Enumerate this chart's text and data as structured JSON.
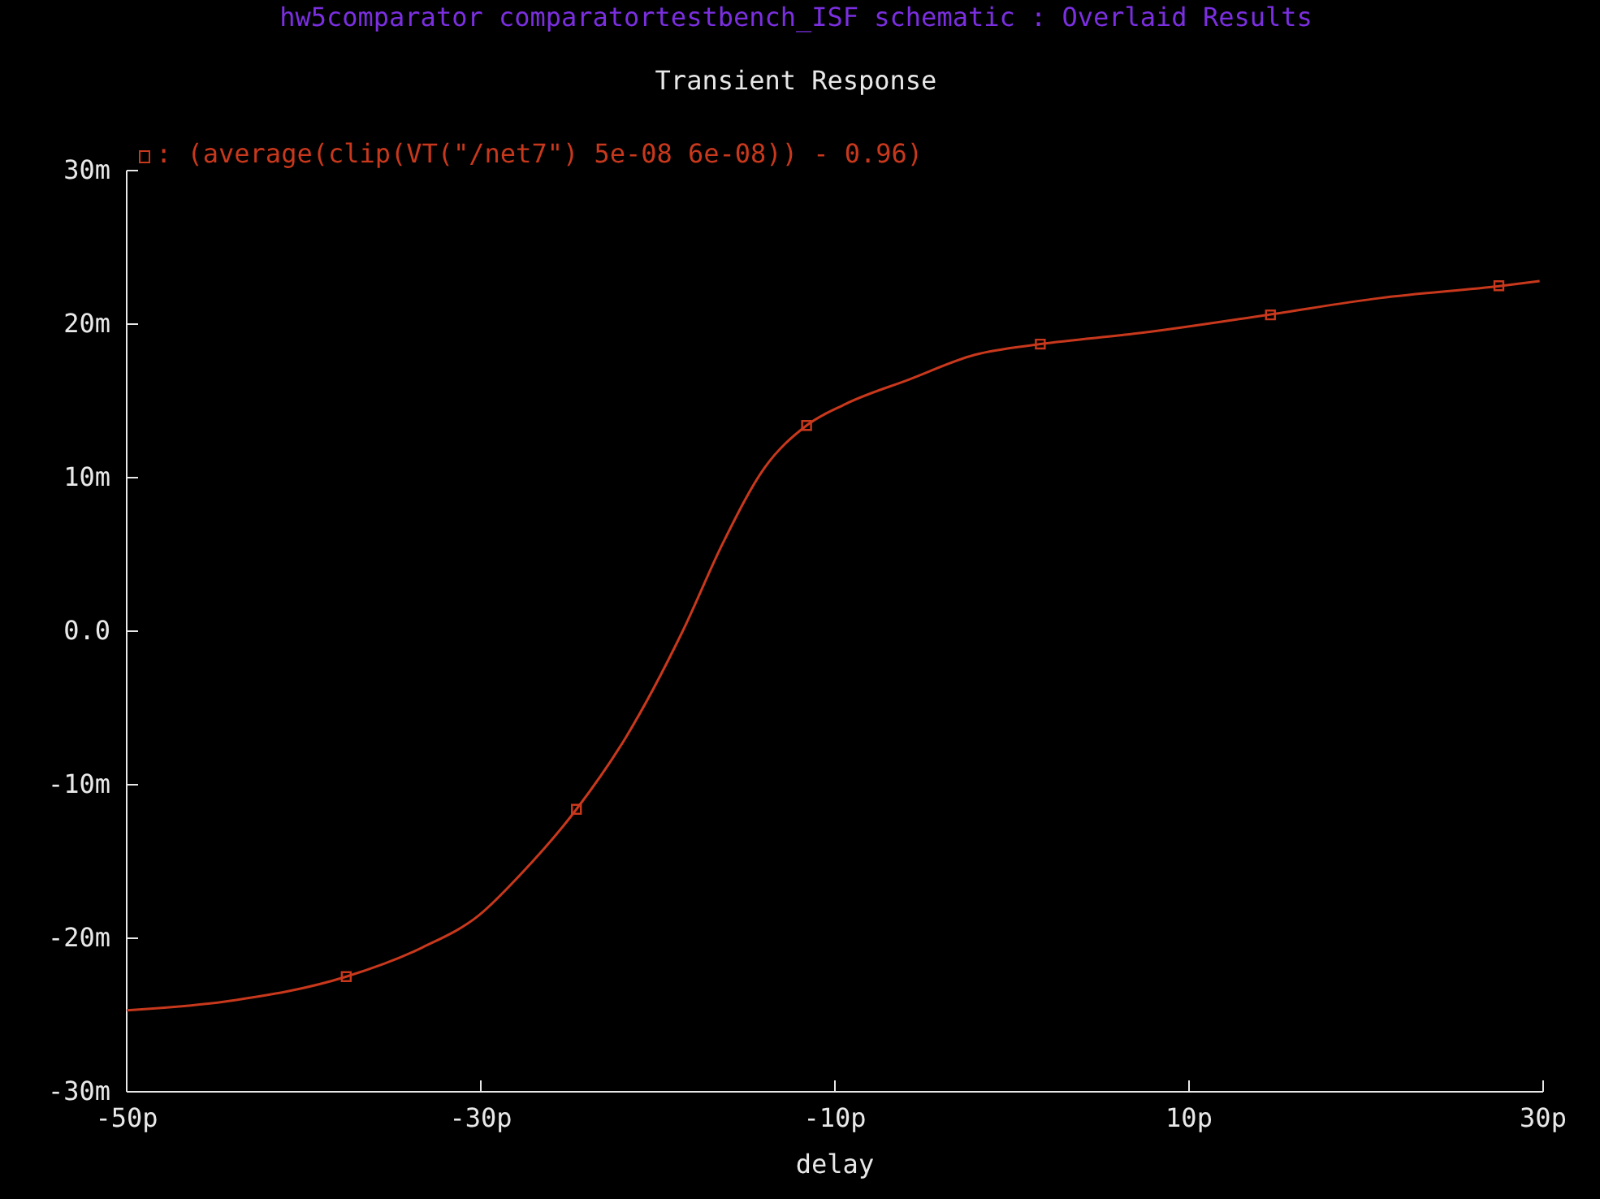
{
  "chart_data": {
    "type": "line",
    "title": "Transient Response",
    "subtitle": "hw5comparator comparatortestbench_ISF schematic : Overlaid Results",
    "xlabel": "delay",
    "xlim": [
      -50,
      30
    ],
    "xticks": [
      {
        "value": -50,
        "label": "-50p"
      },
      {
        "value": -30,
        "label": "-30p"
      },
      {
        "value": -10,
        "label": "-10p"
      },
      {
        "value": 10,
        "label": "10p"
      },
      {
        "value": 30,
        "label": "30p"
      }
    ],
    "ylim": [
      -30,
      30
    ],
    "yticks": [
      {
        "value": -30,
        "label": "-30m"
      },
      {
        "value": -20,
        "label": "-20m"
      },
      {
        "value": -10,
        "label": "-10m"
      },
      {
        "value": 0,
        "label": "0.0"
      },
      {
        "value": 10,
        "label": "10m"
      },
      {
        "value": 20,
        "label": "20m"
      },
      {
        "value": 30,
        "label": "30m"
      }
    ],
    "grid": false,
    "series": [
      {
        "name": ": (average(clip(VT(\"/net7\") 5e-08 6e-08)) - 0.96)",
        "color": "#c8381c",
        "x": [
          -50,
          -44.3,
          -37.6,
          -33.3,
          -30.1,
          -27.8,
          -24.6,
          -21.8,
          -18.6,
          -16.3,
          -14.0,
          -11.6,
          -9.4,
          -5.8,
          -2.1,
          1.6,
          7.1,
          14.4,
          20.8,
          27.7,
          29.8
        ],
        "values": [
          -24.7,
          -24.1,
          -22.5,
          -20.6,
          -18.5,
          -15.9,
          -11.6,
          -6.9,
          0,
          5.8,
          10.6,
          13.4,
          14.8,
          16.4,
          18.0,
          18.7,
          19.4,
          20.6,
          21.7,
          22.5,
          22.8
        ]
      },
      {
        "type": "scatter",
        "marker": "square",
        "color": "#c8381c",
        "x": [
          -37.6,
          -24.6,
          -11.6,
          1.6,
          14.6,
          27.5
        ],
        "values": [
          -22.5,
          -11.6,
          13.4,
          18.7,
          20.6,
          22.5
        ]
      }
    ]
  }
}
